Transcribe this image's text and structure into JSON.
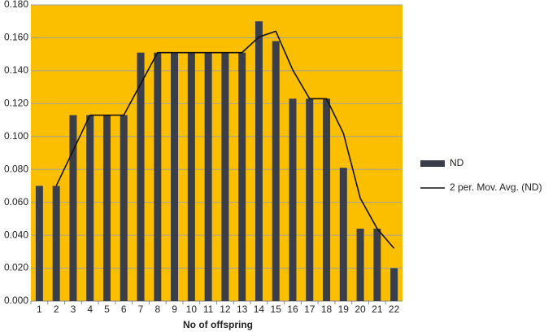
{
  "chart_data": {
    "type": "bar",
    "x_label": "No of offspring",
    "categories": [
      1,
      2,
      3,
      4,
      5,
      6,
      7,
      8,
      9,
      10,
      11,
      12,
      13,
      14,
      15,
      16,
      17,
      18,
      19,
      20,
      21,
      22
    ],
    "series": [
      {
        "name": "ND",
        "type": "bar",
        "color": "#3a3e48",
        "values": [
          0.07,
          0.07,
          0.113,
          0.113,
          0.113,
          0.113,
          0.151,
          0.151,
          0.151,
          0.151,
          0.151,
          0.151,
          0.151,
          0.17,
          0.158,
          0.123,
          0.123,
          0.123,
          0.081,
          0.044,
          0.044,
          0.02
        ]
      },
      {
        "name": "2 per. Mov. Avg. (ND)",
        "type": "line",
        "color": "#111111",
        "values": [
          null,
          0.07,
          0.0915,
          0.113,
          0.113,
          0.113,
          0.132,
          0.151,
          0.151,
          0.151,
          0.151,
          0.151,
          0.151,
          0.1605,
          0.164,
          0.1405,
          0.123,
          0.123,
          0.102,
          0.0625,
          0.044,
          0.032
        ]
      }
    ],
    "ylim": [
      0,
      0.18
    ],
    "yticks": [
      {
        "value": 0,
        "label": "0.000"
      },
      {
        "value": 0.02,
        "label": "0.020"
      },
      {
        "value": 0.04,
        "label": "0.040"
      },
      {
        "value": 0.06,
        "label": "0.060"
      },
      {
        "value": 0.08,
        "label": "0.080"
      },
      {
        "value": 0.1,
        "label": "0.100"
      },
      {
        "value": 0.12,
        "label": "0.120"
      },
      {
        "value": 0.14,
        "label": "0.140"
      },
      {
        "value": 0.16,
        "label": "0.160"
      },
      {
        "value": 0.18,
        "label": "0.180"
      }
    ],
    "grid": true,
    "background": "#fcbf00",
    "legend": "right"
  }
}
